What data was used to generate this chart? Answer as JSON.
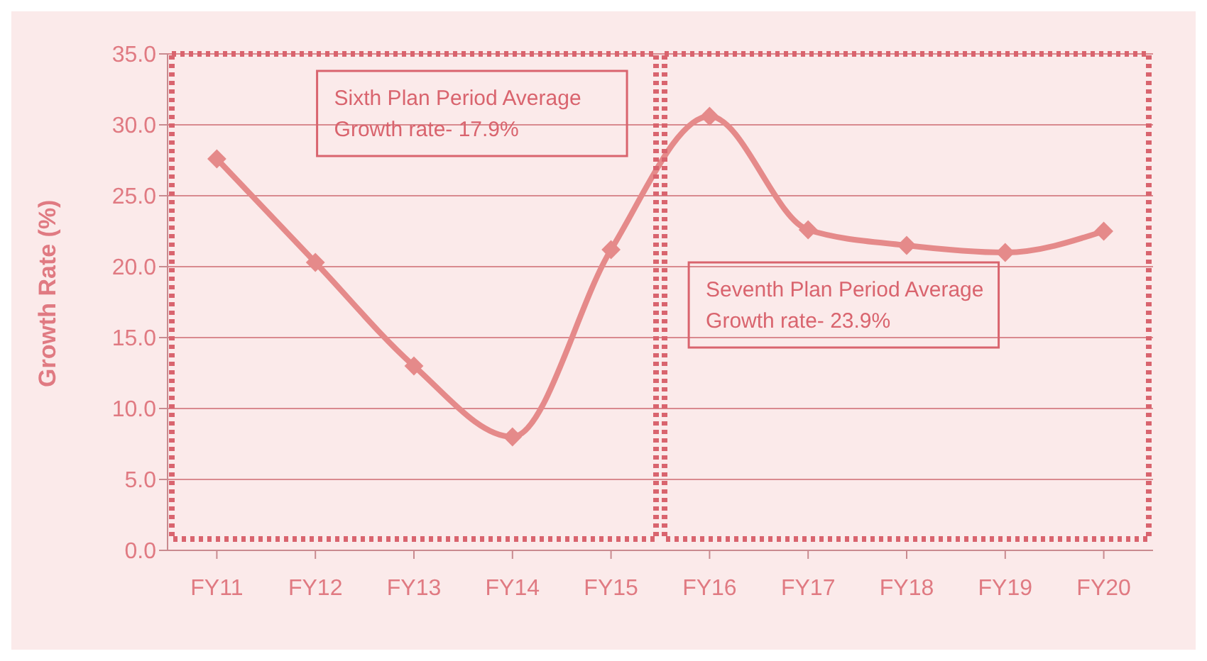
{
  "chart_data": {
    "type": "line",
    "ylabel": "Growth Rate (%)",
    "categories": [
      "FY11",
      "FY12",
      "FY13",
      "FY14",
      "FY15",
      "FY16",
      "FY17",
      "FY18",
      "FY19",
      "FY20"
    ],
    "series": [
      {
        "color": "#e58a8a",
        "values": [
          27.6,
          20.3,
          13.0,
          8.0,
          21.2,
          30.6,
          22.6,
          21.5,
          21.0,
          22.5
        ]
      }
    ],
    "ylim": [
      0,
      35
    ],
    "yticks": [
      {
        "value": 0,
        "label": "0.0"
      },
      {
        "value": 5,
        "label": "5.0"
      },
      {
        "value": 10,
        "label": "10.0"
      },
      {
        "value": 15,
        "label": "15.0"
      },
      {
        "value": 20,
        "label": "20.0"
      },
      {
        "value": 25,
        "label": "25.0"
      },
      {
        "value": 30,
        "label": "30.0"
      },
      {
        "value": 35,
        "label": "35.0"
      }
    ],
    "annotations": [
      "Sixth Plan Period Average\nGrowth rate- 17.9%",
      "Seventh Plan Period Average\nGrowth rate- 23.9%"
    ],
    "grid": "y",
    "marker": "diamond",
    "line_style": "solid"
  }
}
